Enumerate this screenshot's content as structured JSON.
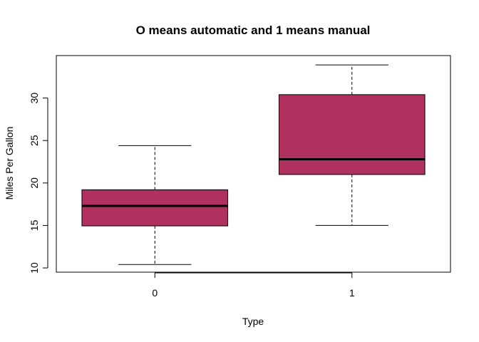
{
  "chart_data": {
    "type": "boxplot",
    "title": "O means automatic and 1 means manual",
    "xlabel": "Type",
    "ylabel": "Miles Per Gallon",
    "categories": [
      "0",
      "1"
    ],
    "yticks": [
      "10",
      "15",
      "20",
      "25",
      "30"
    ],
    "ylim": [
      9.5,
      35
    ],
    "grid": false,
    "box_color": "#B03060",
    "boxes": [
      {
        "category": "0",
        "whisker_low": 10.4,
        "q1": 14.95,
        "median": 17.3,
        "q3": 19.2,
        "whisker_high": 24.4
      },
      {
        "category": "1",
        "whisker_low": 15.0,
        "q1": 21.0,
        "median": 22.8,
        "q3": 30.4,
        "whisker_high": 33.9
      }
    ]
  }
}
